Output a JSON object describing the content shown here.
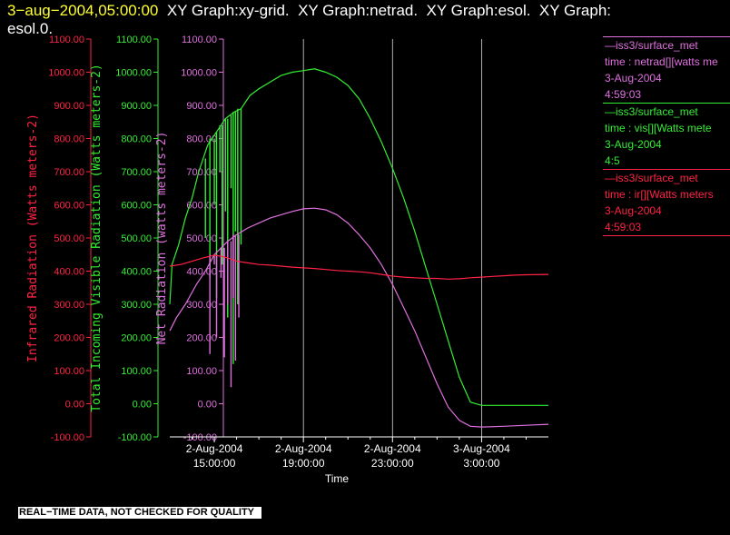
{
  "title": {
    "timestamp": "3−aug−2004,05:00:00",
    "rest": "  XY Graph:xy-grid.  XY Graph:netrad.  XY Graph:esol.  XY Graph:\nesol.0."
  },
  "footer": "REAL−TIME DATA, NOT CHECKED FOR QUALITY",
  "legend": [
    {
      "lines": [
        "—iss3/surface_met",
        "time : netrad[][watts me",
        "3-Aug-2004",
        "4:59:03"
      ],
      "color": "#e070e0"
    },
    {
      "lines": [
        "—iss3/surface_met",
        "time : vis[][Watts mete",
        "3-Aug-2004",
        "4:5"
      ],
      "color": "#33ee33"
    },
    {
      "lines": [
        "—iss3/surface_met",
        "time : ir[][Watts meters",
        "3-Aug-2004",
        "4:59:03"
      ],
      "color": "#ff2244"
    }
  ],
  "chart_data": {
    "type": "line",
    "xlabel": "Time",
    "x_ticks": [
      {
        "hours": 15,
        "lines": [
          "2-Aug-2004",
          "15:00:00"
        ]
      },
      {
        "hours": 19,
        "lines": [
          "2-Aug-2004",
          "19:00:00"
        ]
      },
      {
        "hours": 23,
        "lines": [
          "2-Aug-2004",
          "23:00:00"
        ]
      },
      {
        "hours": 27,
        "lines": [
          "3-Aug-2004",
          "3:00:00"
        ]
      }
    ],
    "xlim": [
      "2-Aug-2004 13:00",
      "3-Aug-2004 05:00"
    ],
    "vertical_grid_hours": [
      19,
      23,
      27
    ],
    "y_ticks": [
      -100,
      0,
      100,
      200,
      300,
      400,
      500,
      600,
      700,
      800,
      900,
      1000,
      1100
    ],
    "ylim": [
      -100,
      1100
    ],
    "axes": [
      {
        "label": "Infrared Radiation (Watts meters-2)",
        "color": "#ff2244"
      },
      {
        "label": "Total Incoming Visible Radiation (Watts meters-2)",
        "color": "#33ee33"
      },
      {
        "label": "Net Radiation (watts meters-2)",
        "color": "#e070e0"
      }
    ],
    "series": [
      {
        "name": "vis",
        "color": "#33ee33",
        "points": [
          [
            13.0,
            300
          ],
          [
            13.1,
            420
          ],
          [
            13.4,
            480
          ],
          [
            13.7,
            560
          ],
          [
            14.0,
            620
          ],
          [
            14.3,
            700
          ],
          [
            14.5,
            740
          ],
          [
            14.7,
            780
          ],
          [
            14.9,
            800
          ],
          [
            15.1,
            820
          ],
          [
            15.3,
            840
          ],
          [
            15.5,
            860
          ],
          [
            15.7,
            870
          ],
          [
            15.9,
            880
          ],
          [
            16.2,
            890
          ],
          [
            16.6,
            930
          ],
          [
            17.0,
            950
          ],
          [
            17.5,
            970
          ],
          [
            18.0,
            990
          ],
          [
            18.5,
            1000
          ],
          [
            19.0,
            1005
          ],
          [
            19.5,
            1010
          ],
          [
            20.0,
            1000
          ],
          [
            20.5,
            985
          ],
          [
            21.0,
            960
          ],
          [
            21.5,
            920
          ],
          [
            22.0,
            860
          ],
          [
            22.5,
            790
          ],
          [
            23.0,
            710
          ],
          [
            23.5,
            620
          ],
          [
            24.0,
            520
          ],
          [
            24.5,
            410
          ],
          [
            25.0,
            300
          ],
          [
            25.5,
            190
          ],
          [
            26.0,
            80
          ],
          [
            26.5,
            5
          ],
          [
            27.0,
            -5
          ],
          [
            28.0,
            -5
          ],
          [
            29.0,
            -5
          ],
          [
            30.0,
            -5
          ]
        ],
        "spikes": [
          [
            14.6,
            500
          ],
          [
            14.8,
            380
          ],
          [
            15.0,
            600
          ],
          [
            15.1,
            320
          ],
          [
            15.25,
            700
          ],
          [
            15.35,
            420
          ],
          [
            15.5,
            580
          ],
          [
            15.6,
            260
          ],
          [
            15.75,
            650
          ],
          [
            15.85,
            120
          ],
          [
            15.95,
            520
          ],
          [
            16.05,
            300
          ],
          [
            16.2,
            480
          ]
        ]
      },
      {
        "name": "netrad",
        "color": "#e070e0",
        "points": [
          [
            13.0,
            220
          ],
          [
            13.3,
            260
          ],
          [
            13.7,
            300
          ],
          [
            14.2,
            360
          ],
          [
            14.6,
            400
          ],
          [
            15.0,
            450
          ],
          [
            15.3,
            470
          ],
          [
            15.6,
            490
          ],
          [
            16.0,
            510
          ],
          [
            16.5,
            530
          ],
          [
            17.0,
            545
          ],
          [
            17.5,
            560
          ],
          [
            18.0,
            570
          ],
          [
            18.5,
            580
          ],
          [
            19.0,
            588
          ],
          [
            19.5,
            590
          ],
          [
            20.0,
            585
          ],
          [
            20.5,
            570
          ],
          [
            21.0,
            545
          ],
          [
            21.5,
            510
          ],
          [
            22.0,
            470
          ],
          [
            22.5,
            420
          ],
          [
            23.0,
            360
          ],
          [
            23.5,
            290
          ],
          [
            24.0,
            220
          ],
          [
            24.5,
            140
          ],
          [
            25.0,
            60
          ],
          [
            25.5,
            -10
          ],
          [
            26.0,
            -50
          ],
          [
            26.5,
            -68
          ],
          [
            27.0,
            -70
          ],
          [
            28.0,
            -68
          ],
          [
            29.0,
            -65
          ],
          [
            30.0,
            -62
          ]
        ],
        "spikes": [
          [
            14.8,
            150
          ],
          [
            15.0,
            420
          ],
          [
            15.1,
            200
          ],
          [
            15.3,
            380
          ],
          [
            15.45,
            140
          ],
          [
            15.6,
            300
          ],
          [
            15.75,
            50
          ],
          [
            15.85,
            320
          ],
          [
            15.95,
            130
          ],
          [
            16.1,
            260
          ]
        ]
      },
      {
        "name": "ir",
        "color": "#ff2244",
        "points": [
          [
            13.0,
            415
          ],
          [
            13.5,
            420
          ],
          [
            14.0,
            430
          ],
          [
            14.5,
            440
          ],
          [
            15.0,
            448
          ],
          [
            15.3,
            445
          ],
          [
            15.6,
            440
          ],
          [
            16.0,
            430
          ],
          [
            16.5,
            425
          ],
          [
            17.0,
            420
          ],
          [
            17.5,
            418
          ],
          [
            18.0,
            415
          ],
          [
            18.5,
            412
          ],
          [
            19.0,
            410
          ],
          [
            19.5,
            408
          ],
          [
            20.0,
            405
          ],
          [
            20.5,
            402
          ],
          [
            21.0,
            400
          ],
          [
            21.5,
            398
          ],
          [
            22.0,
            395
          ],
          [
            22.5,
            390
          ],
          [
            23.0,
            385
          ],
          [
            23.5,
            382
          ],
          [
            24.0,
            380
          ],
          [
            24.5,
            378
          ],
          [
            25.0,
            378
          ],
          [
            25.5,
            376
          ],
          [
            26.0,
            377
          ],
          [
            26.5,
            380
          ],
          [
            27.0,
            382
          ],
          [
            27.5,
            384
          ],
          [
            28.0,
            386
          ],
          [
            28.5,
            388
          ],
          [
            29.0,
            389
          ],
          [
            30.0,
            390
          ]
        ],
        "spikes": []
      }
    ]
  }
}
